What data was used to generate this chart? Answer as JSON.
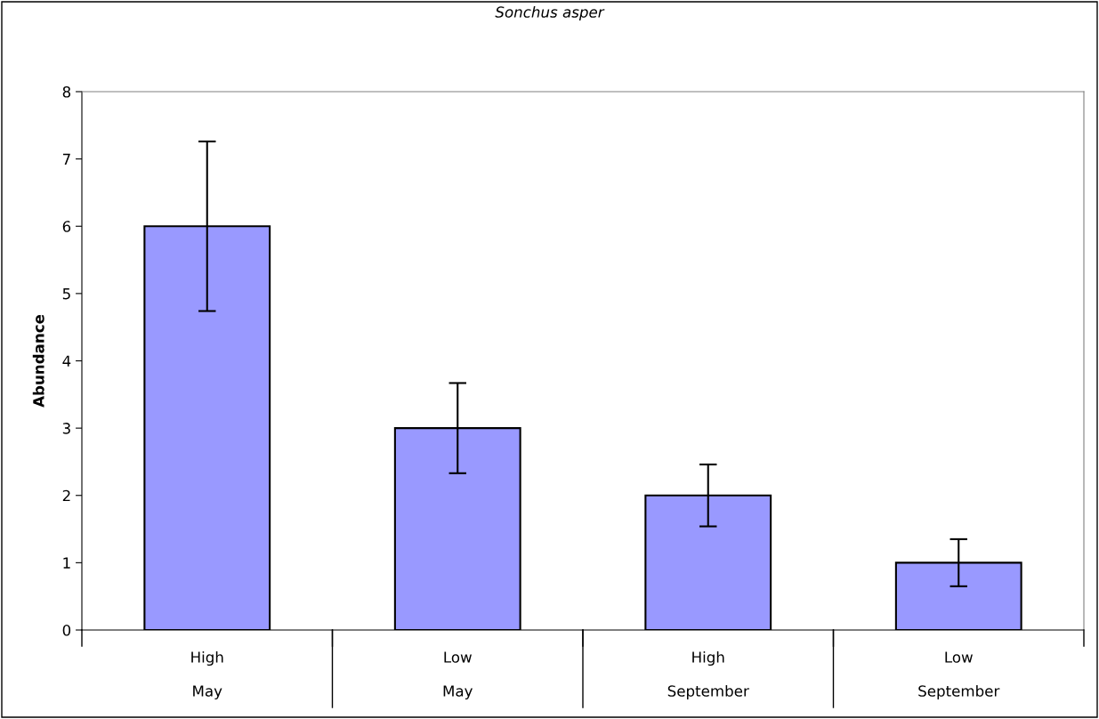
{
  "chart_data": {
    "type": "bar",
    "title": "Sonchus asper",
    "ylabel": "Abundance",
    "categories": [
      "High\nMay",
      "Low\nMay",
      "High\nSeptember",
      "Low\nSeptember"
    ],
    "values": [
      6,
      3,
      2,
      1
    ],
    "errors": [
      1.26,
      0.67,
      0.46,
      0.35
    ],
    "color": "#9999ff",
    "ylim": [
      0,
      8
    ],
    "yticks": [
      0,
      1,
      2,
      3,
      4,
      5,
      6,
      7,
      8
    ],
    "grid": false,
    "legend": false
  }
}
